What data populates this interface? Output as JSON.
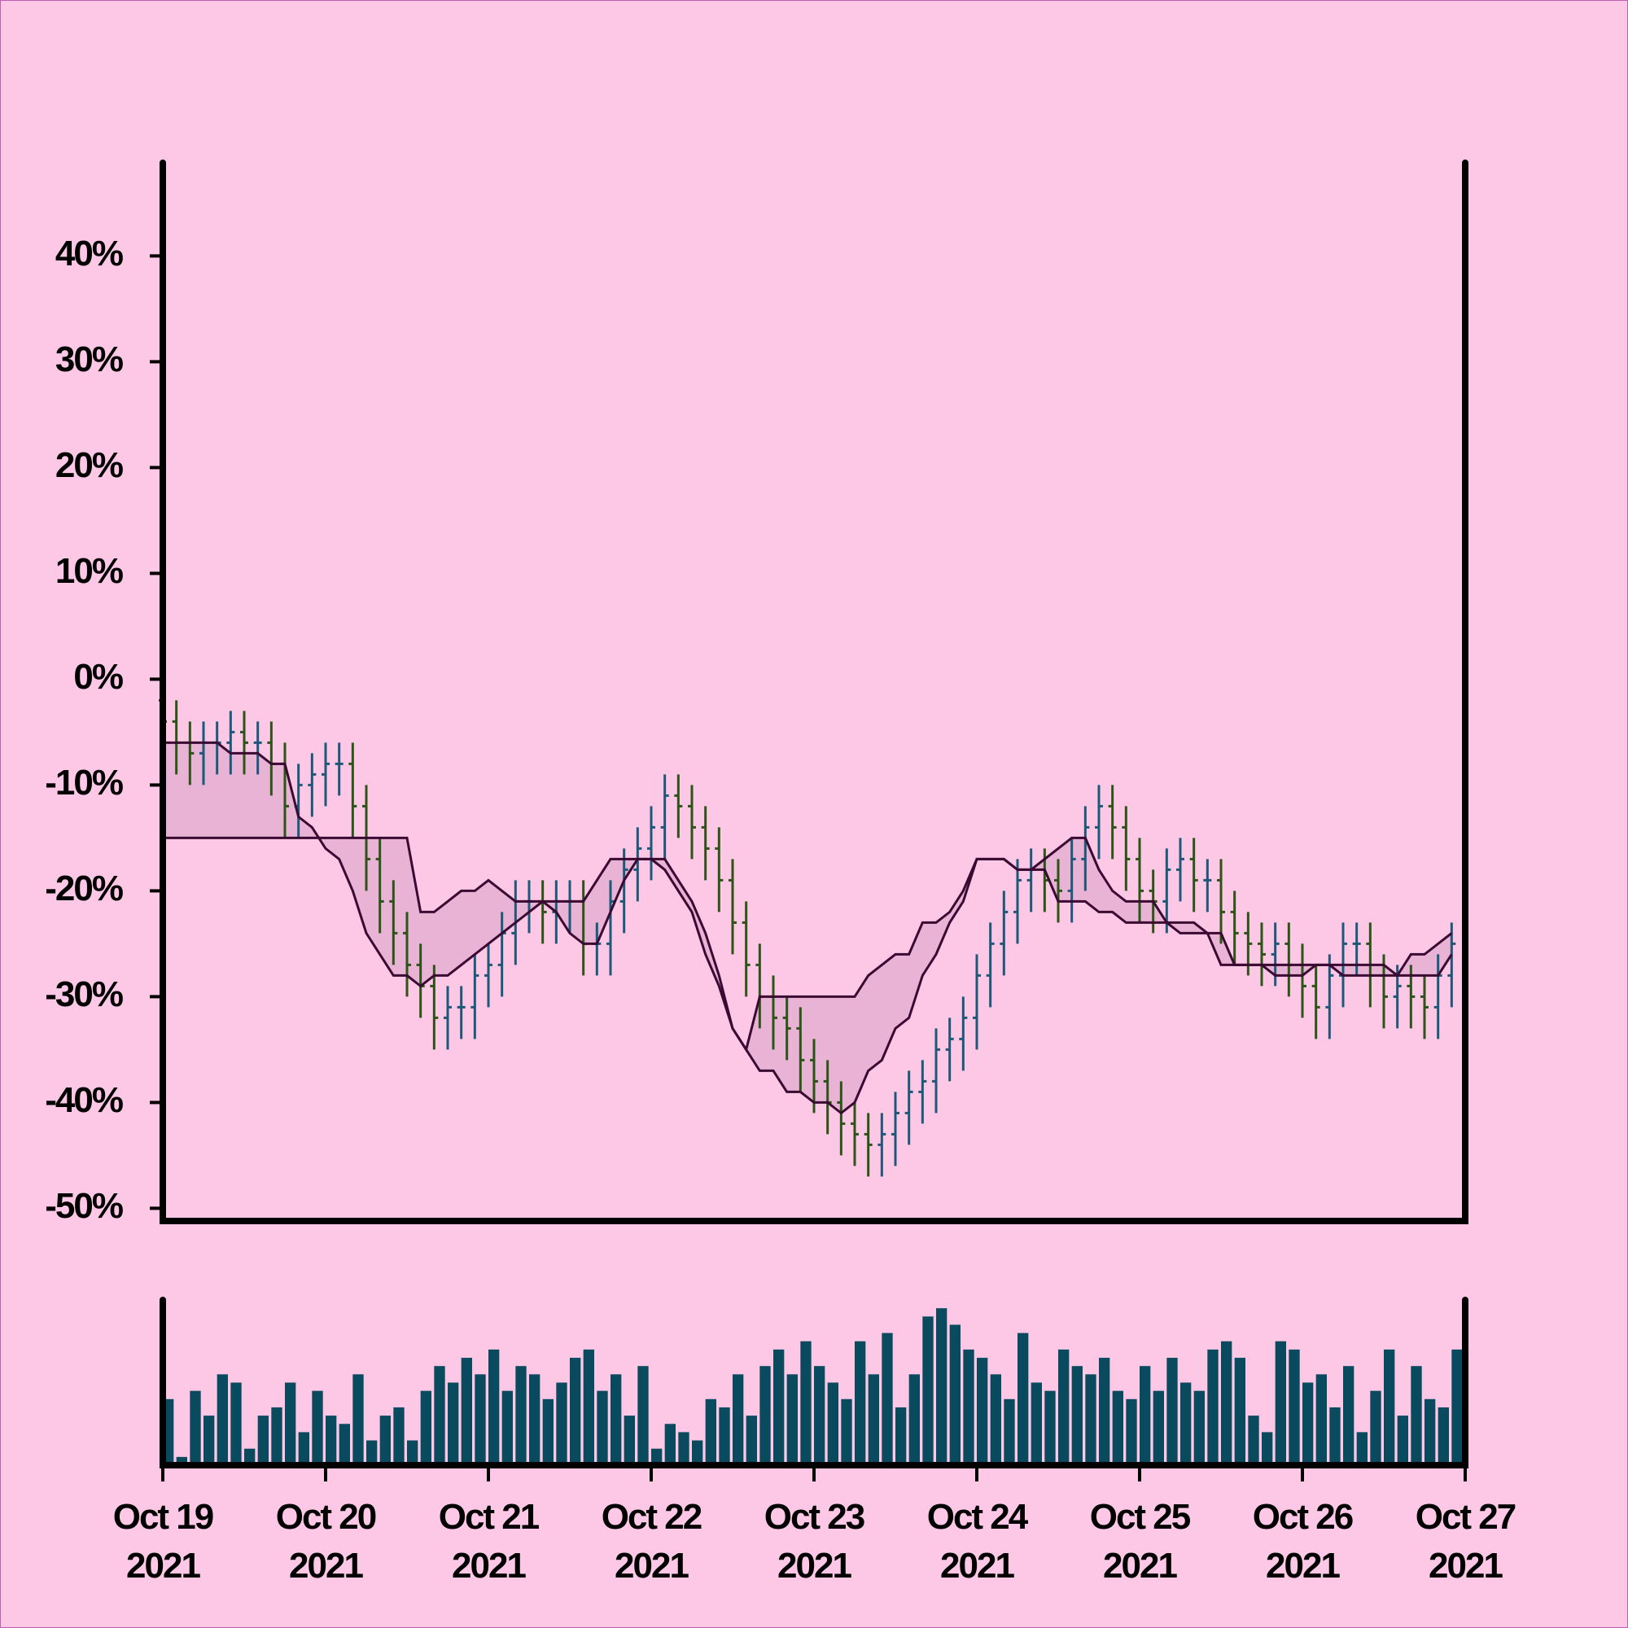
{
  "chart_data": {
    "type": "ohlc",
    "x": [
      "2021-10-19T00:00",
      "2021-10-19T02:00",
      "2021-10-19T04:00",
      "2021-10-19T06:00",
      "2021-10-19T08:00",
      "2021-10-19T10:00",
      "2021-10-19T12:00",
      "2021-10-19T14:00",
      "2021-10-19T16:00",
      "2021-10-19T18:00",
      "2021-10-19T20:00",
      "2021-10-19T22:00",
      "2021-10-20T00:00",
      "2021-10-20T02:00",
      "2021-10-20T04:00",
      "2021-10-20T06:00",
      "2021-10-20T08:00",
      "2021-10-20T10:00",
      "2021-10-20T12:00",
      "2021-10-20T14:00",
      "2021-10-20T16:00",
      "2021-10-20T18:00",
      "2021-10-20T20:00",
      "2021-10-20T22:00",
      "2021-10-21T00:00",
      "2021-10-21T02:00",
      "2021-10-21T04:00",
      "2021-10-21T06:00",
      "2021-10-21T08:00",
      "2021-10-21T10:00",
      "2021-10-21T12:00",
      "2021-10-21T14:00",
      "2021-10-21T16:00",
      "2021-10-21T18:00",
      "2021-10-21T20:00",
      "2021-10-21T22:00",
      "2021-10-22T00:00",
      "2021-10-22T02:00",
      "2021-10-22T04:00",
      "2021-10-22T06:00",
      "2021-10-22T08:00",
      "2021-10-22T10:00",
      "2021-10-22T12:00",
      "2021-10-22T14:00",
      "2021-10-22T16:00",
      "2021-10-22T18:00",
      "2021-10-22T20:00",
      "2021-10-22T22:00",
      "2021-10-23T00:00",
      "2021-10-23T02:00",
      "2021-10-23T04:00",
      "2021-10-23T06:00",
      "2021-10-23T08:00",
      "2021-10-23T10:00",
      "2021-10-23T12:00",
      "2021-10-23T14:00",
      "2021-10-23T16:00",
      "2021-10-23T18:00",
      "2021-10-23T20:00",
      "2021-10-23T22:00",
      "2021-10-24T00:00",
      "2021-10-24T02:00",
      "2021-10-24T04:00",
      "2021-10-24T06:00",
      "2021-10-24T08:00",
      "2021-10-24T10:00",
      "2021-10-24T12:00",
      "2021-10-24T14:00",
      "2021-10-24T16:00",
      "2021-10-24T18:00",
      "2021-10-24T20:00",
      "2021-10-24T22:00",
      "2021-10-25T00:00",
      "2021-10-25T02:00",
      "2021-10-25T04:00",
      "2021-10-25T06:00",
      "2021-10-25T08:00",
      "2021-10-25T10:00",
      "2021-10-25T12:00",
      "2021-10-25T14:00",
      "2021-10-25T16:00",
      "2021-10-25T18:00",
      "2021-10-25T20:00",
      "2021-10-25T22:00",
      "2021-10-26T00:00",
      "2021-10-26T02:00",
      "2021-10-26T04:00",
      "2021-10-26T06:00",
      "2021-10-26T08:00",
      "2021-10-26T10:00",
      "2021-10-26T12:00",
      "2021-10-26T14:00",
      "2021-10-26T16:00",
      "2021-10-26T18:00",
      "2021-10-26T20:00",
      "2021-10-26T22:00"
    ],
    "open": [
      -2,
      -4,
      -6,
      -7,
      -6,
      -6,
      -5,
      -6,
      -6,
      -8,
      -12,
      -10,
      -9,
      -8,
      -8,
      -12,
      -17,
      -21,
      -24,
      -27,
      -29,
      -32,
      -31,
      -31,
      -28,
      -27,
      -24,
      -21,
      -21,
      -22,
      -21,
      -21,
      -25,
      -25,
      -21,
      -18,
      -16,
      -14,
      -11,
      -12,
      -14,
      -16,
      -19,
      -23,
      -27,
      -30,
      -32,
      -33,
      -36,
      -38,
      -40,
      -42,
      -43,
      -44,
      -43,
      -41,
      -39,
      -38,
      -35,
      -34,
      -32,
      -28,
      -25,
      -22,
      -19,
      -18,
      -19,
      -20,
      -17,
      -14,
      -12,
      -14,
      -17,
      -20,
      -21,
      -18,
      -17,
      -19,
      -19,
      -22,
      -24,
      -25,
      -26,
      -25,
      -27,
      -29,
      -31,
      -28,
      -25,
      -25,
      -28,
      -30,
      -29,
      -30,
      -31,
      -28
    ],
    "high": [
      0,
      -2,
      -4,
      -4,
      -4,
      -3,
      -3,
      -4,
      -4,
      -6,
      -8,
      -7,
      -6,
      -6,
      -6,
      -10,
      -15,
      -19,
      -22,
      -25,
      -27,
      -29,
      -29,
      -26,
      -25,
      -22,
      -19,
      -19,
      -19,
      -19,
      -19,
      -19,
      -23,
      -19,
      -16,
      -14,
      -12,
      -9,
      -9,
      -10,
      -12,
      -14,
      -17,
      -21,
      -25,
      -28,
      -30,
      -31,
      -34,
      -36,
      -38,
      -40,
      -41,
      -41,
      -39,
      -37,
      -36,
      -33,
      -32,
      -30,
      -26,
      -23,
      -20,
      -17,
      -16,
      -16,
      -17,
      -15,
      -12,
      -10,
      -10,
      -12,
      -15,
      -18,
      -16,
      -15,
      -15,
      -17,
      -17,
      -20,
      -22,
      -23,
      -23,
      -23,
      -25,
      -27,
      -26,
      -23,
      -23,
      -23,
      -26,
      -27,
      -27,
      -28,
      -26,
      -23
    ],
    "low": [
      -7,
      -9,
      -10,
      -10,
      -9,
      -9,
      -9,
      -9,
      -11,
      -15,
      -15,
      -13,
      -12,
      -11,
      -15,
      -20,
      -24,
      -27,
      -30,
      -32,
      -35,
      -35,
      -34,
      -34,
      -31,
      -30,
      -27,
      -24,
      -25,
      -25,
      -24,
      -28,
      -28,
      -28,
      -24,
      -21,
      -19,
      -17,
      -15,
      -17,
      -19,
      -22,
      -26,
      -30,
      -33,
      -35,
      -36,
      -39,
      -41,
      -43,
      -45,
      -46,
      -47,
      -47,
      -46,
      -44,
      -42,
      -41,
      -38,
      -37,
      -35,
      -31,
      -28,
      -25,
      -22,
      -22,
      -23,
      -23,
      -20,
      -17,
      -17,
      -20,
      -23,
      -24,
      -24,
      -21,
      -22,
      -22,
      -25,
      -27,
      -28,
      -29,
      -29,
      -30,
      -32,
      -34,
      -34,
      -31,
      -28,
      -31,
      -33,
      -33,
      -33,
      -34,
      -34,
      -31
    ],
    "close": [
      -4,
      -6,
      -7,
      -6,
      -6,
      -5,
      -6,
      -6,
      -8,
      -12,
      -10,
      -9,
      -8,
      -8,
      -12,
      -17,
      -21,
      -24,
      -27,
      -29,
      -32,
      -31,
      -31,
      -28,
      -27,
      -24,
      -21,
      -21,
      -22,
      -21,
      -21,
      -25,
      -25,
      -21,
      -18,
      -16,
      -14,
      -11,
      -12,
      -14,
      -16,
      -19,
      -23,
      -27,
      -30,
      -32,
      -33,
      -36,
      -38,
      -40,
      -42,
      -43,
      -44,
      -43,
      -41,
      -39,
      -38,
      -35,
      -34,
      -32,
      -28,
      -25,
      -22,
      -19,
      -18,
      -19,
      -20,
      -17,
      -14,
      -12,
      -14,
      -17,
      -20,
      -21,
      -18,
      -17,
      -19,
      -19,
      -22,
      -24,
      -25,
      -26,
      -25,
      -27,
      -29,
      -31,
      -28,
      -25,
      -25,
      -28,
      -30,
      -29,
      -30,
      -31,
      -28,
      -25
    ],
    "up_color": "#1d5878",
    "down_color": "#2b5416",
    "series": [
      {
        "color": "#3a0a33",
        "values": [
          -6,
          -6,
          -6,
          -6,
          -6,
          -7,
          -7,
          -7,
          -8,
          -8,
          -13,
          -14,
          -16,
          -17,
          -20,
          -24,
          -26,
          -28,
          -28,
          -29,
          -28,
          -28,
          -27,
          -26,
          -25,
          -24,
          -23,
          -22,
          -21,
          -22,
          -24,
          -25,
          -25,
          -22,
          -19,
          -17,
          -17,
          -17,
          -19,
          -21,
          -24,
          -28,
          -33,
          -35,
          -37,
          -37,
          -39,
          -39,
          -40,
          -40,
          -41,
          -40,
          -37,
          -36,
          -33,
          -32,
          -28,
          -26,
          -23,
          -21,
          -17,
          -17,
          -17,
          -18,
          -18,
          -17,
          -16,
          -15,
          -15,
          -18,
          -20,
          -21,
          -21,
          -21,
          -23,
          -23,
          -23,
          -24,
          -27,
          -27,
          -27,
          -27,
          -28,
          -28,
          -28,
          -27,
          -27,
          -28,
          -28,
          -28,
          -28,
          -28,
          -26,
          -26,
          -25,
          -24
        ]
      },
      {
        "color": "#3a0a33",
        "values": [
          -15,
          -15,
          -15,
          -15,
          -15,
          -15,
          -15,
          -15,
          -15,
          -15,
          -15,
          -15,
          -15,
          -15,
          -15,
          -15,
          -15,
          -15,
          -15,
          -22,
          -22,
          -21,
          -20,
          -20,
          -19,
          -20,
          -21,
          -21,
          -21,
          -21,
          -21,
          -21,
          -19,
          -17,
          -17,
          -17,
          -17,
          -18,
          -20,
          -22,
          -26,
          -29,
          -33,
          -35,
          -30,
          -30,
          -30,
          -30,
          -30,
          -30,
          -30,
          -30,
          -28,
          -27,
          -26,
          -26,
          -23,
          -23,
          -22,
          -20,
          -17,
          -17,
          -17,
          -18,
          -18,
          -18,
          -21,
          -21,
          -21,
          -22,
          -22,
          -23,
          -23,
          -23,
          -23,
          -24,
          -24,
          -24,
          -24,
          -27,
          -27,
          -27,
          -27,
          -27,
          -27,
          -27,
          -27,
          -27,
          -27,
          -27,
          -27,
          -28,
          -28,
          -28,
          -28,
          -26
        ]
      }
    ],
    "cloud_color": "#e8b3d5",
    "volume": [
      40,
      5,
      45,
      30,
      55,
      50,
      10,
      30,
      35,
      50,
      20,
      45,
      30,
      25,
      55,
      15,
      30,
      35,
      15,
      45,
      60,
      50,
      65,
      55,
      70,
      45,
      60,
      55,
      40,
      50,
      65,
      70,
      45,
      55,
      30,
      60,
      10,
      25,
      20,
      15,
      40,
      35,
      55,
      30,
      60,
      70,
      55,
      75,
      60,
      50,
      40,
      75,
      55,
      80,
      35,
      55,
      90,
      95,
      85,
      70,
      65,
      55,
      40,
      80,
      50,
      45,
      70,
      60,
      55,
      65,
      45,
      40,
      60,
      45,
      65,
      50,
      45,
      70,
      75,
      65,
      30,
      20,
      75,
      70,
      50,
      55,
      35,
      60,
      20,
      45,
      70,
      30,
      60,
      40,
      35,
      70
    ],
    "volume_color": "#0a4a5e",
    "volume_ylim": [
      0,
      100
    ],
    "xlim": [
      "2021-10-19T00:00",
      "2021-10-27T00:00"
    ],
    "xticks": [
      {
        "value": "2021-10-19T00:00",
        "label": "Oct 19\n2021"
      },
      {
        "value": "2021-10-20T00:00",
        "label": "Oct 20\n2021"
      },
      {
        "value": "2021-10-21T00:00",
        "label": "Oct 21\n2021"
      },
      {
        "value": "2021-10-22T00:00",
        "label": "Oct 22\n2021"
      },
      {
        "value": "2021-10-23T00:00",
        "label": "Oct 23\n2021"
      },
      {
        "value": "2021-10-24T00:00",
        "label": "Oct 24\n2021"
      },
      {
        "value": "2021-10-25T00:00",
        "label": "Oct 25\n2021"
      },
      {
        "value": "2021-10-26T00:00",
        "label": "Oct 26\n2021"
      },
      {
        "value": "2021-10-27T00:00",
        "label": "Oct 27\n2021"
      }
    ],
    "ylim": [
      -51.2,
      48.8
    ],
    "yticks": [
      {
        "value": -50,
        "label": "-50%"
      },
      {
        "value": -40,
        "label": "-40%"
      },
      {
        "value": -30,
        "label": "-30%"
      },
      {
        "value": -20,
        "label": "-20%"
      },
      {
        "value": -10,
        "label": "-10%"
      },
      {
        "value": 0,
        "label": "0%"
      },
      {
        "value": 10,
        "label": "10%"
      },
      {
        "value": 20,
        "label": "20%"
      },
      {
        "value": 30,
        "label": "30%"
      },
      {
        "value": 40,
        "label": "40%"
      }
    ]
  }
}
